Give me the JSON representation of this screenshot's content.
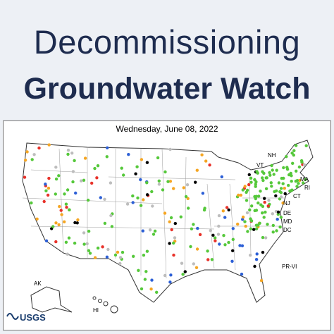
{
  "header": {
    "title_line1": "Decommissioning",
    "title_line2": "Groundwater Watch"
  },
  "map": {
    "date": "Wednesday, June 08, 2022",
    "state_labels": [
      "NH",
      "VT",
      "MA",
      "RI",
      "CT",
      "NJ",
      "DE",
      "MD",
      "DC",
      "PR-VI",
      "AK",
      "HI"
    ],
    "logo": "USGS"
  }
}
